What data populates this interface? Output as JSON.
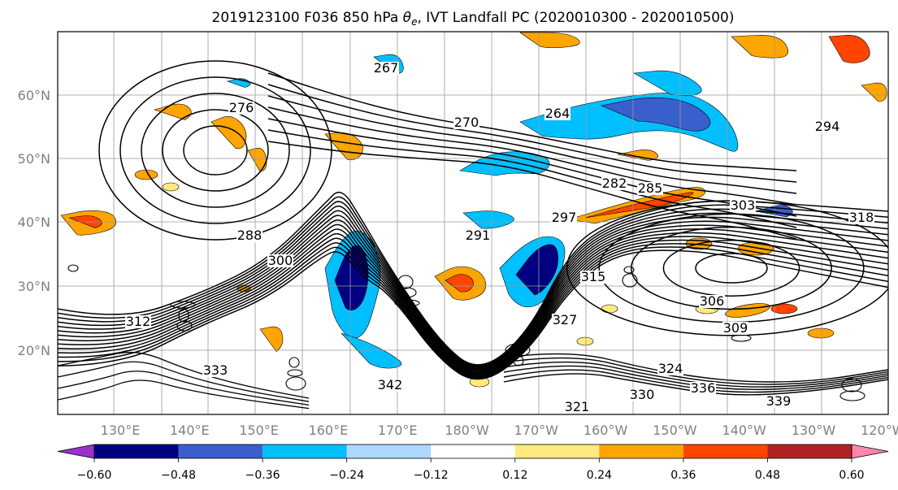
{
  "map": {
    "title_prefix": "2019123100 F036 850 hPa ",
    "title_symbol": "θ",
    "title_subscript": "e",
    "title_suffix": ", IVT Landfall PC (2020010300 - 2020010500)",
    "lat_labels": [
      "60°N",
      "50°N",
      "40°N",
      "30°N",
      "20°N"
    ],
    "lon_labels": [
      "130°E",
      "140°E",
      "150°E",
      "160°E",
      "170°E",
      "180°W",
      "170°W",
      "160°W",
      "150°W",
      "140°W",
      "130°W",
      "120°W"
    ],
    "contour_labels": [
      "270",
      "264",
      "267",
      "276",
      "282",
      "285",
      "288",
      "291",
      "294",
      "297",
      "300",
      "303",
      "306",
      "309",
      "312",
      "315",
      "318",
      "321",
      "324",
      "327",
      "330",
      "333",
      "336",
      "339",
      "342"
    ],
    "contour_color": "#000000",
    "positive_palette": [
      "#ffea80",
      "#ffa500",
      "#ff4500",
      "#b22222",
      "#ff88aa"
    ],
    "negative_palette": [
      "#add8ff",
      "#00bfff",
      "#3a5fcd",
      "#000080",
      "#9932cc"
    ]
  },
  "colorbar": {
    "colors": [
      "#9932cc",
      "#000080",
      "#3a5fcd",
      "#00bfff",
      "#add8ff",
      "#ffffff",
      "#ffea80",
      "#ffa500",
      "#ff4500",
      "#b22222",
      "#ff88aa"
    ],
    "ticks": [
      "−0.60",
      "−0.48",
      "−0.36",
      "−0.24",
      "−0.12",
      "0.12",
      "0.24",
      "0.36",
      "0.48",
      "0.60"
    ]
  }
}
